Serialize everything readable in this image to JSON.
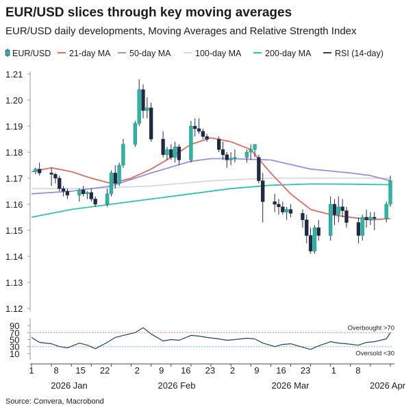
{
  "header": {
    "title": "EUR/USD slices through key moving averages",
    "subtitle": "EUR/USD daily developments, Moving Averages and Relative Strength Index"
  },
  "source": "Source: Convera, Macrobond",
  "colors": {
    "up": "#2bb5a6",
    "down": "#1f2a44",
    "ma21": "#e46a5f",
    "ma50": "#9a8fe0",
    "ma100": "#d9d9d9",
    "ma200": "#2cc3b0",
    "rsi": "#2b3c58",
    "overbought": "#e38a84",
    "oversold": "#40c7c0"
  },
  "chart_data": [
    {
      "type": "candlestick",
      "title": "EUR/USD slices through key moving averages",
      "legend": [
        "EUR/USD",
        "21-day MA",
        "50-day MA",
        "100-day MA",
        "200-day MA",
        "RSI (14-day)"
      ],
      "legend_position": "top",
      "ylim": [
        1.12,
        1.21
      ],
      "yticks": [
        "1.12",
        "1.13",
        "1.14",
        "1.15",
        "1.16",
        "1.17",
        "1.18",
        "1.19",
        "1.20",
        "1.21"
      ],
      "x_ticks": [
        "1",
        "8",
        "15",
        "22",
        "2",
        "9",
        "16",
        "23",
        "2",
        "9",
        "16",
        "23",
        "1",
        "8"
      ],
      "x_months": [
        "2026 Jan",
        "2026 Feb",
        "2026 Mar",
        "2026 Apr"
      ],
      "candles": [
        {
          "d": 1,
          "o": 1.1725,
          "h": 1.174,
          "l": 1.1715,
          "c": 1.1735
        },
        {
          "d": 2,
          "o": 1.1735,
          "h": 1.176,
          "l": 1.171,
          "c": 1.172
        },
        {
          "d": 5,
          "o": 1.172,
          "h": 1.174,
          "l": 1.167,
          "c": 1.1715
        },
        {
          "d": 6,
          "o": 1.1715,
          "h": 1.172,
          "l": 1.168,
          "c": 1.17
        },
        {
          "d": 7,
          "o": 1.17,
          "h": 1.171,
          "l": 1.165,
          "c": 1.166
        },
        {
          "d": 8,
          "o": 1.166,
          "h": 1.167,
          "l": 1.163,
          "c": 1.165
        },
        {
          "d": 9,
          "o": 1.165,
          "h": 1.166,
          "l": 1.162,
          "c": 1.1635
        },
        {
          "d": 12,
          "o": 1.1635,
          "h": 1.166,
          "l": 1.161,
          "c": 1.1655
        },
        {
          "d": 13,
          "o": 1.1655,
          "h": 1.167,
          "l": 1.163,
          "c": 1.164
        },
        {
          "d": 14,
          "o": 1.164,
          "h": 1.165,
          "l": 1.162,
          "c": 1.1645
        },
        {
          "d": 15,
          "o": 1.1645,
          "h": 1.166,
          "l": 1.161,
          "c": 1.162
        },
        {
          "d": 16,
          "o": 1.162,
          "h": 1.163,
          "l": 1.159,
          "c": 1.16
        },
        {
          "d": 19,
          "o": 1.16,
          "h": 1.166,
          "l": 1.159,
          "c": 1.164
        },
        {
          "d": 20,
          "o": 1.164,
          "h": 1.173,
          "l": 1.163,
          "c": 1.172
        },
        {
          "d": 21,
          "o": 1.172,
          "h": 1.175,
          "l": 1.166,
          "c": 1.168
        },
        {
          "d": 22,
          "o": 1.168,
          "h": 1.176,
          "l": 1.167,
          "c": 1.175
        },
        {
          "d": 23,
          "o": 1.175,
          "h": 1.185,
          "l": 1.174,
          "c": 1.183
        },
        {
          "d": 26,
          "o": 1.183,
          "h": 1.192,
          "l": 1.182,
          "c": 1.191
        },
        {
          "d": 27,
          "o": 1.191,
          "h": 1.208,
          "l": 1.19,
          "c": 1.204
        },
        {
          "d": 28,
          "o": 1.204,
          "h": 1.206,
          "l": 1.193,
          "c": 1.196
        },
        {
          "d": 29,
          "o": 1.196,
          "h": 1.201,
          "l": 1.193,
          "c": 1.197
        },
        {
          "d": 30,
          "o": 1.197,
          "h": 1.199,
          "l": 1.184,
          "c": 1.185
        },
        {
          "d": 33,
          "o": 1.185,
          "h": 1.188,
          "l": 1.178,
          "c": 1.179
        },
        {
          "d": 34,
          "o": 1.179,
          "h": 1.182,
          "l": 1.177,
          "c": 1.181
        },
        {
          "d": 35,
          "o": 1.181,
          "h": 1.183,
          "l": 1.177,
          "c": 1.178
        },
        {
          "d": 36,
          "o": 1.178,
          "h": 1.184,
          "l": 1.176,
          "c": 1.182
        },
        {
          "d": 37,
          "o": 1.182,
          "h": 1.183,
          "l": 1.175,
          "c": 1.177
        },
        {
          "d": 40,
          "o": 1.177,
          "h": 1.192,
          "l": 1.176,
          "c": 1.19
        },
        {
          "d": 41,
          "o": 1.19,
          "h": 1.193,
          "l": 1.186,
          "c": 1.189
        },
        {
          "d": 42,
          "o": 1.189,
          "h": 1.193,
          "l": 1.187,
          "c": 1.188
        },
        {
          "d": 43,
          "o": 1.188,
          "h": 1.189,
          "l": 1.185,
          "c": 1.186
        },
        {
          "d": 44,
          "o": 1.186,
          "h": 1.187,
          "l": 1.184,
          "c": 1.185
        },
        {
          "d": 47,
          "o": 1.185,
          "h": 1.186,
          "l": 1.18,
          "c": 1.181
        },
        {
          "d": 48,
          "o": 1.181,
          "h": 1.184,
          "l": 1.177,
          "c": 1.179
        },
        {
          "d": 49,
          "o": 1.179,
          "h": 1.18,
          "l": 1.174,
          "c": 1.177
        },
        {
          "d": 50,
          "o": 1.177,
          "h": 1.18,
          "l": 1.175,
          "c": 1.1775
        },
        {
          "d": 51,
          "o": 1.1775,
          "h": 1.181,
          "l": 1.176,
          "c": 1.178
        },
        {
          "d": 54,
          "o": 1.178,
          "h": 1.181,
          "l": 1.176,
          "c": 1.18
        },
        {
          "d": 55,
          "o": 1.18,
          "h": 1.183,
          "l": 1.177,
          "c": 1.181
        },
        {
          "d": 56,
          "o": 1.181,
          "h": 1.183,
          "l": 1.178,
          "c": 1.183
        },
        {
          "d": 57,
          "o": 1.178,
          "h": 1.179,
          "l": 1.168,
          "c": 1.169
        },
        {
          "d": 58,
          "o": 1.169,
          "h": 1.172,
          "l": 1.153,
          "c": 1.161
        },
        {
          "d": 61,
          "o": 1.161,
          "h": 1.164,
          "l": 1.157,
          "c": 1.16
        },
        {
          "d": 62,
          "o": 1.16,
          "h": 1.162,
          "l": 1.156,
          "c": 1.159
        },
        {
          "d": 63,
          "o": 1.159,
          "h": 1.161,
          "l": 1.156,
          "c": 1.157
        },
        {
          "d": 64,
          "o": 1.157,
          "h": 1.159,
          "l": 1.154,
          "c": 1.158
        },
        {
          "d": 65,
          "o": 1.158,
          "h": 1.16,
          "l": 1.155,
          "c": 1.1565
        },
        {
          "d": 68,
          "o": 1.1565,
          "h": 1.158,
          "l": 1.151,
          "c": 1.154
        },
        {
          "d": 69,
          "o": 1.154,
          "h": 1.156,
          "l": 1.145,
          "c": 1.148
        },
        {
          "d": 70,
          "o": 1.148,
          "h": 1.151,
          "l": 1.141,
          "c": 1.142
        },
        {
          "d": 71,
          "o": 1.142,
          "h": 1.152,
          "l": 1.141,
          "c": 1.151
        },
        {
          "d": 72,
          "o": 1.151,
          "h": 1.154,
          "l": 1.146,
          "c": 1.148
        },
        {
          "d": 75,
          "o": 1.148,
          "h": 1.163,
          "l": 1.146,
          "c": 1.16
        },
        {
          "d": 76,
          "o": 1.16,
          "h": 1.162,
          "l": 1.152,
          "c": 1.156
        },
        {
          "d": 77,
          "o": 1.156,
          "h": 1.163,
          "l": 1.153,
          "c": 1.159
        },
        {
          "d": 78,
          "o": 1.159,
          "h": 1.162,
          "l": 1.155,
          "c": 1.1575
        },
        {
          "d": 79,
          "o": 1.1575,
          "h": 1.159,
          "l": 1.151,
          "c": 1.153
        },
        {
          "d": 82,
          "o": 1.153,
          "h": 1.155,
          "l": 1.145,
          "c": 1.148
        },
        {
          "d": 83,
          "o": 1.148,
          "h": 1.156,
          "l": 1.146,
          "c": 1.155
        },
        {
          "d": 84,
          "o": 1.155,
          "h": 1.158,
          "l": 1.151,
          "c": 1.154
        },
        {
          "d": 85,
          "o": 1.154,
          "h": 1.157,
          "l": 1.152,
          "c": 1.155
        },
        {
          "d": 86,
          "o": 1.155,
          "h": 1.157,
          "l": 1.15,
          "c": 1.1545
        },
        {
          "d": 89,
          "o": 1.1545,
          "h": 1.161,
          "l": 1.153,
          "c": 1.16
        },
        {
          "d": 90,
          "o": 1.16,
          "h": 1.171,
          "l": 1.159,
          "c": 1.169
        }
      ],
      "series": [
        {
          "name": "21-day MA",
          "x": [
            0,
            5,
            10,
            15,
            20,
            25,
            30,
            35,
            40,
            45,
            50,
            55,
            60,
            65,
            70,
            75,
            80,
            85,
            90
          ],
          "values": [
            1.1725,
            1.174,
            1.1725,
            1.17,
            1.168,
            1.17,
            1.1735,
            1.178,
            1.183,
            1.1855,
            1.184,
            1.181,
            1.172,
            1.164,
            1.158,
            1.156,
            1.155,
            1.154,
            1.1545
          ]
        },
        {
          "name": "50-day MA",
          "x": [
            0,
            10,
            20,
            30,
            40,
            45,
            50,
            60,
            70,
            80,
            85,
            90
          ],
          "values": [
            1.164,
            1.165,
            1.167,
            1.172,
            1.1765,
            1.1775,
            1.1775,
            1.177,
            1.1735,
            1.172,
            1.171,
            1.169
          ]
        },
        {
          "name": "100-day MA",
          "x": [
            0,
            15,
            30,
            45,
            60,
            75,
            90
          ],
          "values": [
            1.166,
            1.166,
            1.167,
            1.169,
            1.17,
            1.17,
            1.17
          ]
        },
        {
          "name": "200-day MA",
          "x": [
            0,
            10,
            20,
            30,
            40,
            50,
            60,
            70,
            80,
            90
          ],
          "values": [
            1.155,
            1.158,
            1.16,
            1.162,
            1.164,
            1.166,
            1.1673,
            1.1678,
            1.1677,
            1.1675
          ]
        }
      ]
    },
    {
      "type": "line",
      "name": "RSI (14-day)",
      "ylim": [
        0,
        100
      ],
      "yticks": [
        "10",
        "30",
        "50",
        "70",
        "90"
      ],
      "overbought": {
        "value": 70,
        "label": "Overbought >70"
      },
      "oversold": {
        "value": 30,
        "label": "Oversold <30"
      },
      "x": [
        0,
        2,
        5,
        7,
        9,
        12,
        14,
        16,
        19,
        21,
        23,
        26,
        28,
        30,
        33,
        35,
        37,
        40,
        42,
        44,
        47,
        49,
        51,
        54,
        56,
        58,
        61,
        63,
        65,
        68,
        70,
        72,
        75,
        77,
        79,
        82,
        84,
        86,
        89,
        90
      ],
      "values": [
        56,
        42,
        38,
        30,
        26,
        40,
        34,
        24,
        42,
        56,
        62,
        70,
        84,
        66,
        46,
        50,
        48,
        62,
        60,
        56,
        52,
        48,
        50,
        54,
        52,
        40,
        30,
        36,
        38,
        28,
        22,
        32,
        44,
        40,
        38,
        34,
        42,
        44,
        52,
        70
      ]
    }
  ]
}
